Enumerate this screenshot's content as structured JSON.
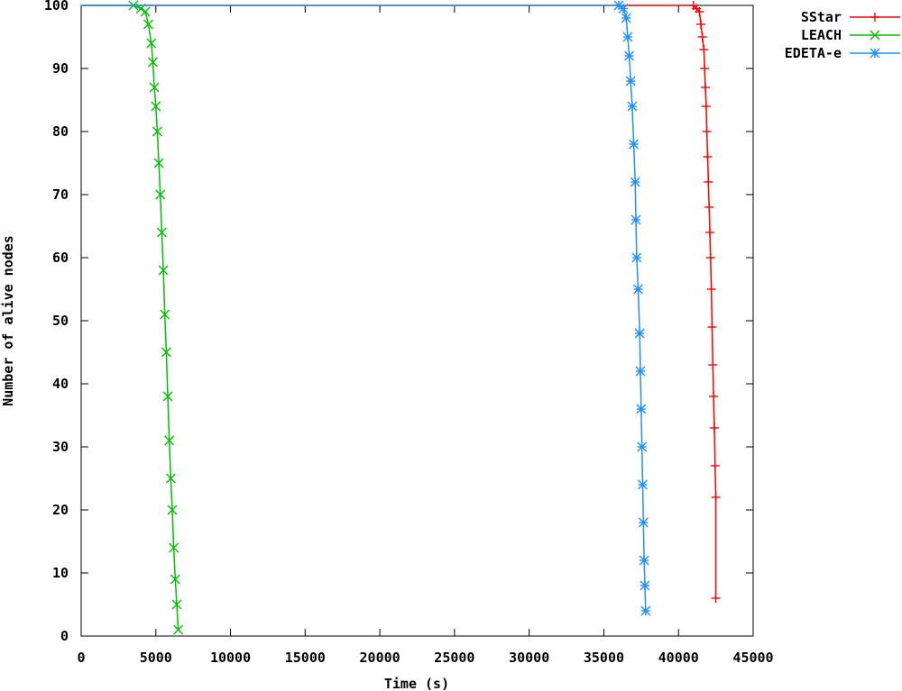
{
  "chart_data": {
    "type": "line",
    "title": "",
    "xlabel": "Time (s)",
    "ylabel": "Number of alive nodes",
    "xlim": [
      0,
      45000
    ],
    "ylim": [
      0,
      100
    ],
    "xticks": [
      "0",
      "5000",
      "10000",
      "15000",
      "20000",
      "25000",
      "30000",
      "35000",
      "40000",
      "45000"
    ],
    "yticks": [
      "0",
      "10",
      "20",
      "30",
      "40",
      "50",
      "60",
      "70",
      "80",
      "90",
      "100"
    ],
    "grid": false,
    "legend_position": "outside-top-right",
    "series": [
      {
        "name": "SStar",
        "color": "#ff0000",
        "marker": "plus",
        "x": [
          0,
          41000,
          41200,
          41400,
          41500,
          41600,
          41700,
          41750,
          41800,
          41850,
          41900,
          41950,
          42000,
          42050,
          42100,
          42150,
          42200,
          42250,
          42300,
          42350,
          42400,
          42450,
          42500,
          42500
        ],
        "y": [
          100,
          100,
          99.5,
          99,
          97,
          95,
          93,
          90,
          87,
          84,
          80,
          76,
          72,
          68,
          64,
          60,
          55,
          49,
          43,
          38,
          33,
          27,
          22,
          6
        ]
      },
      {
        "name": "LEACH",
        "color": "#00c000",
        "marker": "x",
        "x": [
          0,
          3500,
          4000,
          4300,
          4500,
          4700,
          4800,
          4900,
          5000,
          5100,
          5200,
          5300,
          5400,
          5500,
          5600,
          5700,
          5800,
          5900,
          6000,
          6100,
          6200,
          6300,
          6400,
          6500
        ],
        "y": [
          100,
          100,
          99.5,
          99,
          97,
          94,
          91,
          87,
          84,
          80,
          75,
          70,
          64,
          58,
          51,
          45,
          38,
          31,
          25,
          20,
          14,
          9,
          5,
          1
        ]
      },
      {
        "name": "EDETA-e",
        "color": "#1e90ff",
        "marker": "star",
        "x": [
          0,
          36000,
          36300,
          36500,
          36600,
          36700,
          36800,
          36900,
          37000,
          37100,
          37150,
          37200,
          37300,
          37400,
          37450,
          37500,
          37550,
          37600,
          37650,
          37700,
          37750,
          37800
        ],
        "y": [
          100,
          100,
          99.5,
          98,
          95,
          92,
          88,
          84,
          78,
          72,
          66,
          60,
          55,
          48,
          42,
          36,
          30,
          24,
          18,
          12,
          8,
          4
        ]
      }
    ]
  }
}
